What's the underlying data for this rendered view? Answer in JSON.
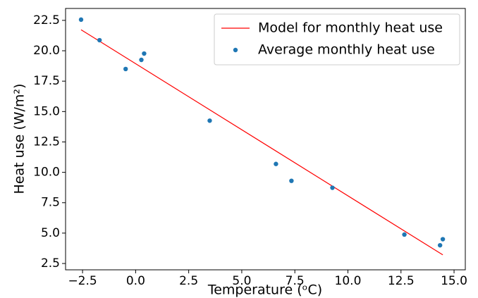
{
  "chart_data": {
    "type": "scatter",
    "xlabel": "Temperature (ᵒC)",
    "ylabel": "Heat use (W/m²)",
    "series": [
      {
        "name": "Model for monthly heat use",
        "kind": "line",
        "color": "#ff0000",
        "x": [
          -2.57,
          14.47
        ],
        "values": [
          21.73,
          3.21
        ]
      },
      {
        "name": "Average monthly heat use",
        "kind": "scatter",
        "color": "#1f77b4",
        "x": [
          -2.57,
          -1.7,
          -0.47,
          0.27,
          0.4,
          3.49,
          6.61,
          7.34,
          9.27,
          12.66,
          14.34,
          14.47
        ],
        "values": [
          22.56,
          20.87,
          18.5,
          19.25,
          19.77,
          14.25,
          10.69,
          9.3,
          8.73,
          4.88,
          4.0,
          4.5
        ]
      }
    ],
    "xlim": [
      -3.3,
      15.53
    ],
    "ylim": [
      1.98,
      23.48
    ],
    "xticks": [
      {
        "value": -2.5,
        "label": "−2.5"
      },
      {
        "value": 0,
        "label": "0.0"
      },
      2.5,
      {
        "value": 5,
        "label": "5.0"
      },
      7.5,
      {
        "value": 10,
        "label": "10.0"
      },
      12.5,
      {
        "value": 15,
        "label": "15.0"
      }
    ],
    "yticks": [
      2.5,
      {
        "value": 5,
        "label": "5.0"
      },
      7.5,
      {
        "value": 10,
        "label": "10.0"
      },
      12.5,
      {
        "value": 15,
        "label": "15.0"
      },
      17.5,
      {
        "value": 20,
        "label": "20.0"
      },
      22.5
    ],
    "legend": "upper right",
    "grid": false
  }
}
